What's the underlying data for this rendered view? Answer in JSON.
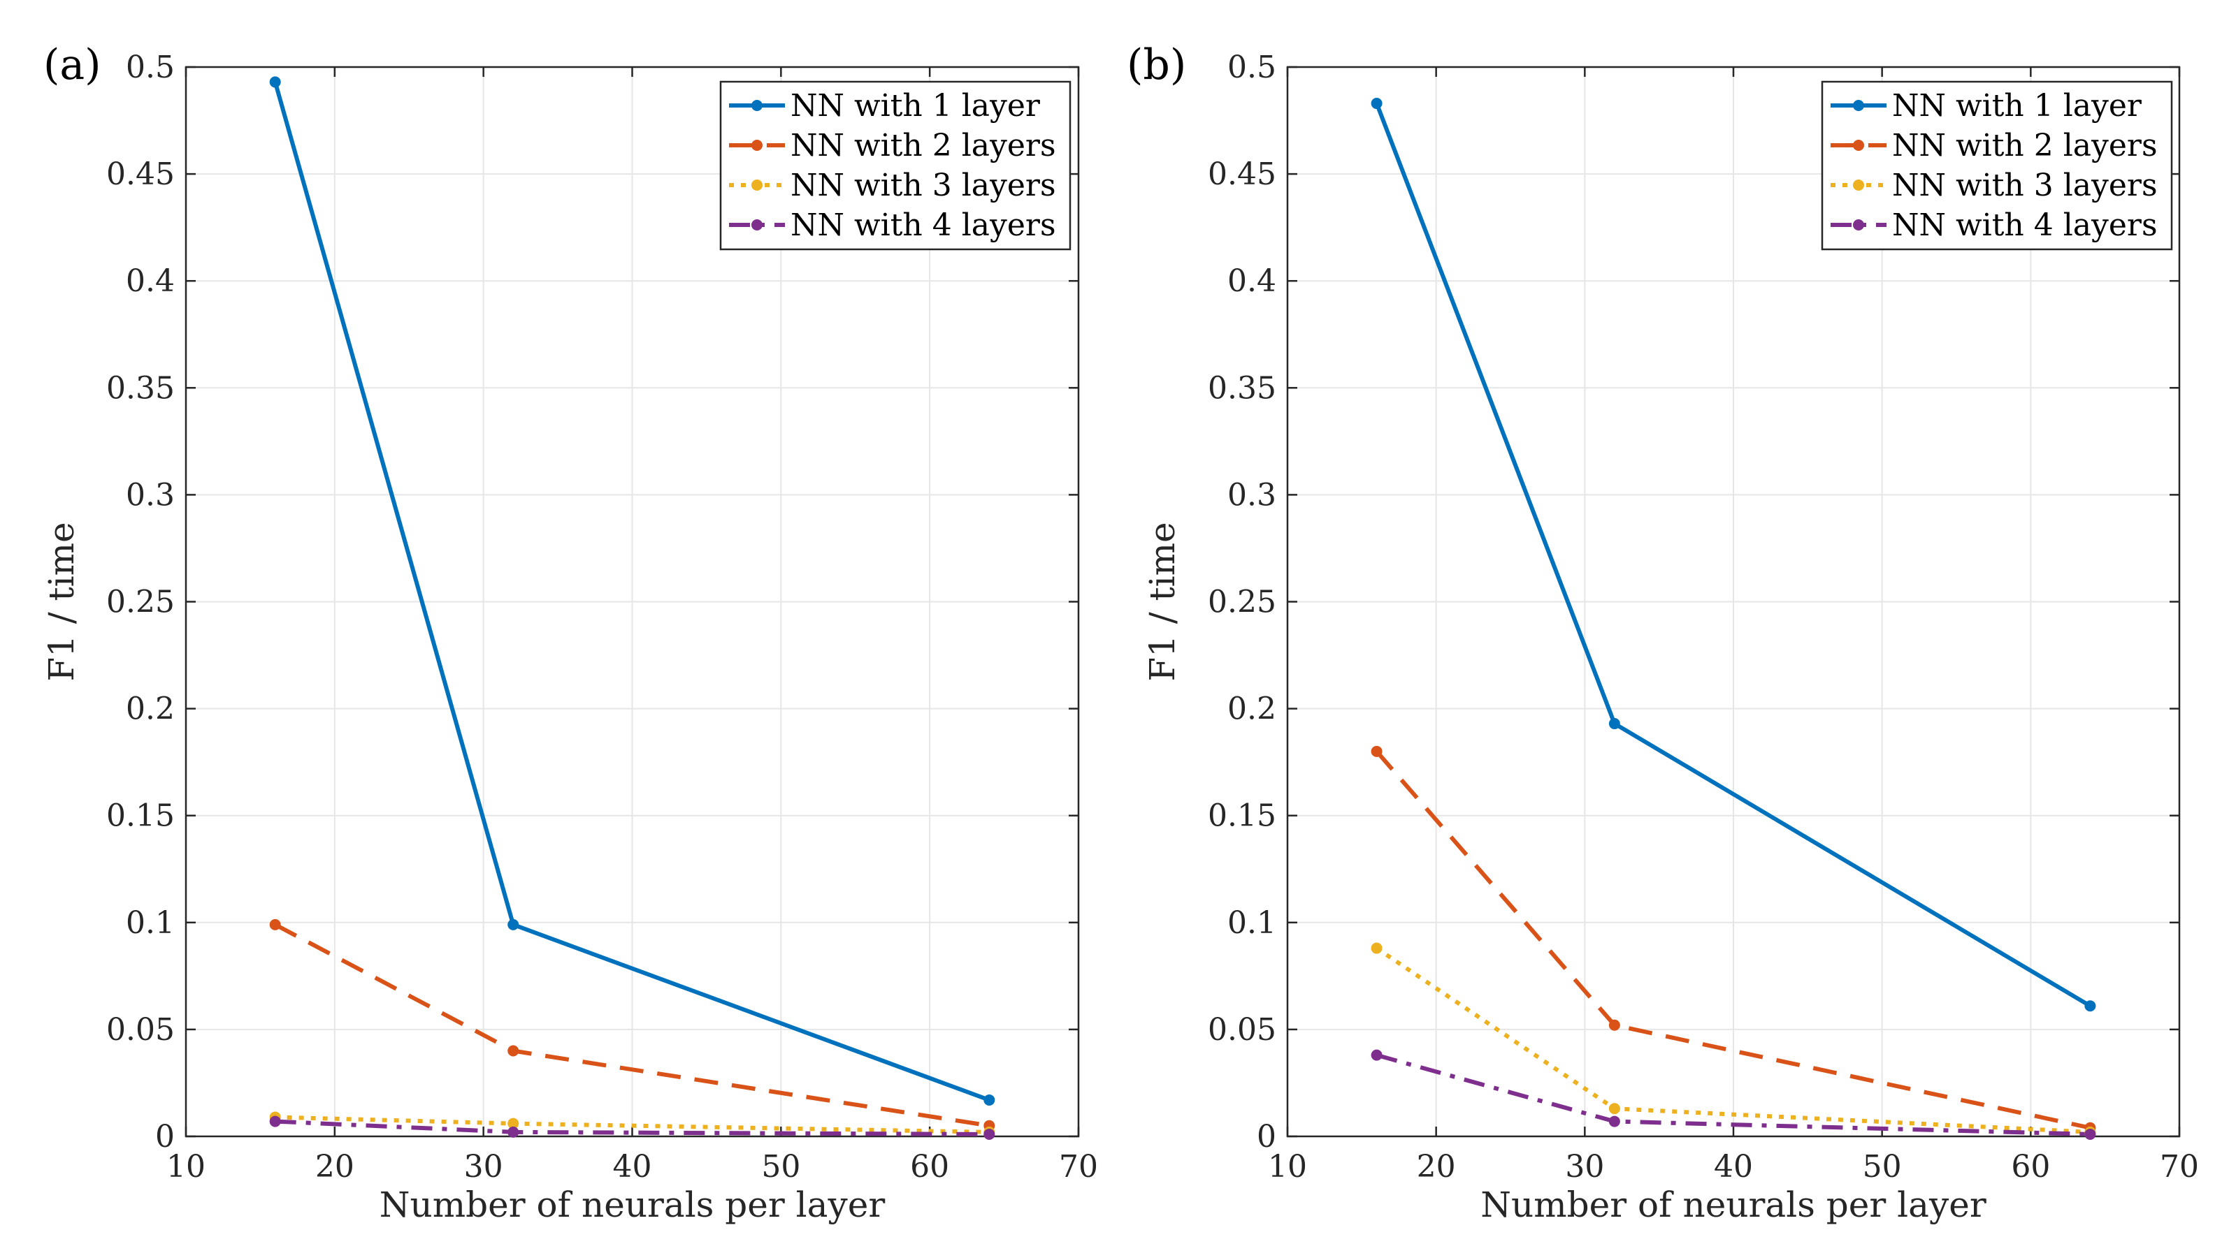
{
  "chart_data": [
    {
      "type": "line",
      "panel_label": "(a)",
      "xlabel": "Number of neurals per layer",
      "ylabel": "F1 / time",
      "xlim": [
        10,
        70
      ],
      "ylim": [
        0,
        0.5
      ],
      "xticks": [
        "10",
        "20",
        "30",
        "40",
        "50",
        "60",
        "70"
      ],
      "yticks": [
        "0",
        "0.05",
        "0.1",
        "0.15",
        "0.2",
        "0.25",
        "0.3",
        "0.35",
        "0.4",
        "0.45",
        "0.5"
      ],
      "grid": true,
      "legend_position": "top-right",
      "x": [
        16,
        32,
        64
      ],
      "series": [
        {
          "name": "NN with 1 layer",
          "values": [
            0.493,
            0.099,
            0.017
          ],
          "color": "#0072BD",
          "style": "solid"
        },
        {
          "name": "NN with 2 layers",
          "values": [
            0.099,
            0.04,
            0.005
          ],
          "color": "#D95319",
          "style": "dashed"
        },
        {
          "name": "NN with 3 layers",
          "values": [
            0.009,
            0.006,
            0.002
          ],
          "color": "#EDB120",
          "style": "dotted"
        },
        {
          "name": "NN with 4 layers",
          "values": [
            0.007,
            0.002,
            0.001
          ],
          "color": "#7E2F8E",
          "style": "dashdot"
        }
      ]
    },
    {
      "type": "line",
      "panel_label": "(b)",
      "xlabel": "Number of neurals per layer",
      "ylabel": "F1 / time",
      "xlim": [
        10,
        70
      ],
      "ylim": [
        0,
        0.5
      ],
      "xticks": [
        "10",
        "20",
        "30",
        "40",
        "50",
        "60",
        "70"
      ],
      "yticks": [
        "0",
        "0.05",
        "0.1",
        "0.15",
        "0.2",
        "0.25",
        "0.3",
        "0.35",
        "0.4",
        "0.45",
        "0.5"
      ],
      "grid": true,
      "legend_position": "top-right",
      "x": [
        16,
        32,
        64
      ],
      "series": [
        {
          "name": "NN with 1 layer",
          "values": [
            0.483,
            0.193,
            0.061
          ],
          "color": "#0072BD",
          "style": "solid"
        },
        {
          "name": "NN with 2 layers",
          "values": [
            0.18,
            0.052,
            0.004
          ],
          "color": "#D95319",
          "style": "dashed"
        },
        {
          "name": "NN with 3 layers",
          "values": [
            0.088,
            0.013,
            0.002
          ],
          "color": "#EDB120",
          "style": "dotted"
        },
        {
          "name": "NN with 4 layers",
          "values": [
            0.038,
            0.007,
            0.001
          ],
          "color": "#7E2F8E",
          "style": "dashdot"
        }
      ]
    }
  ]
}
